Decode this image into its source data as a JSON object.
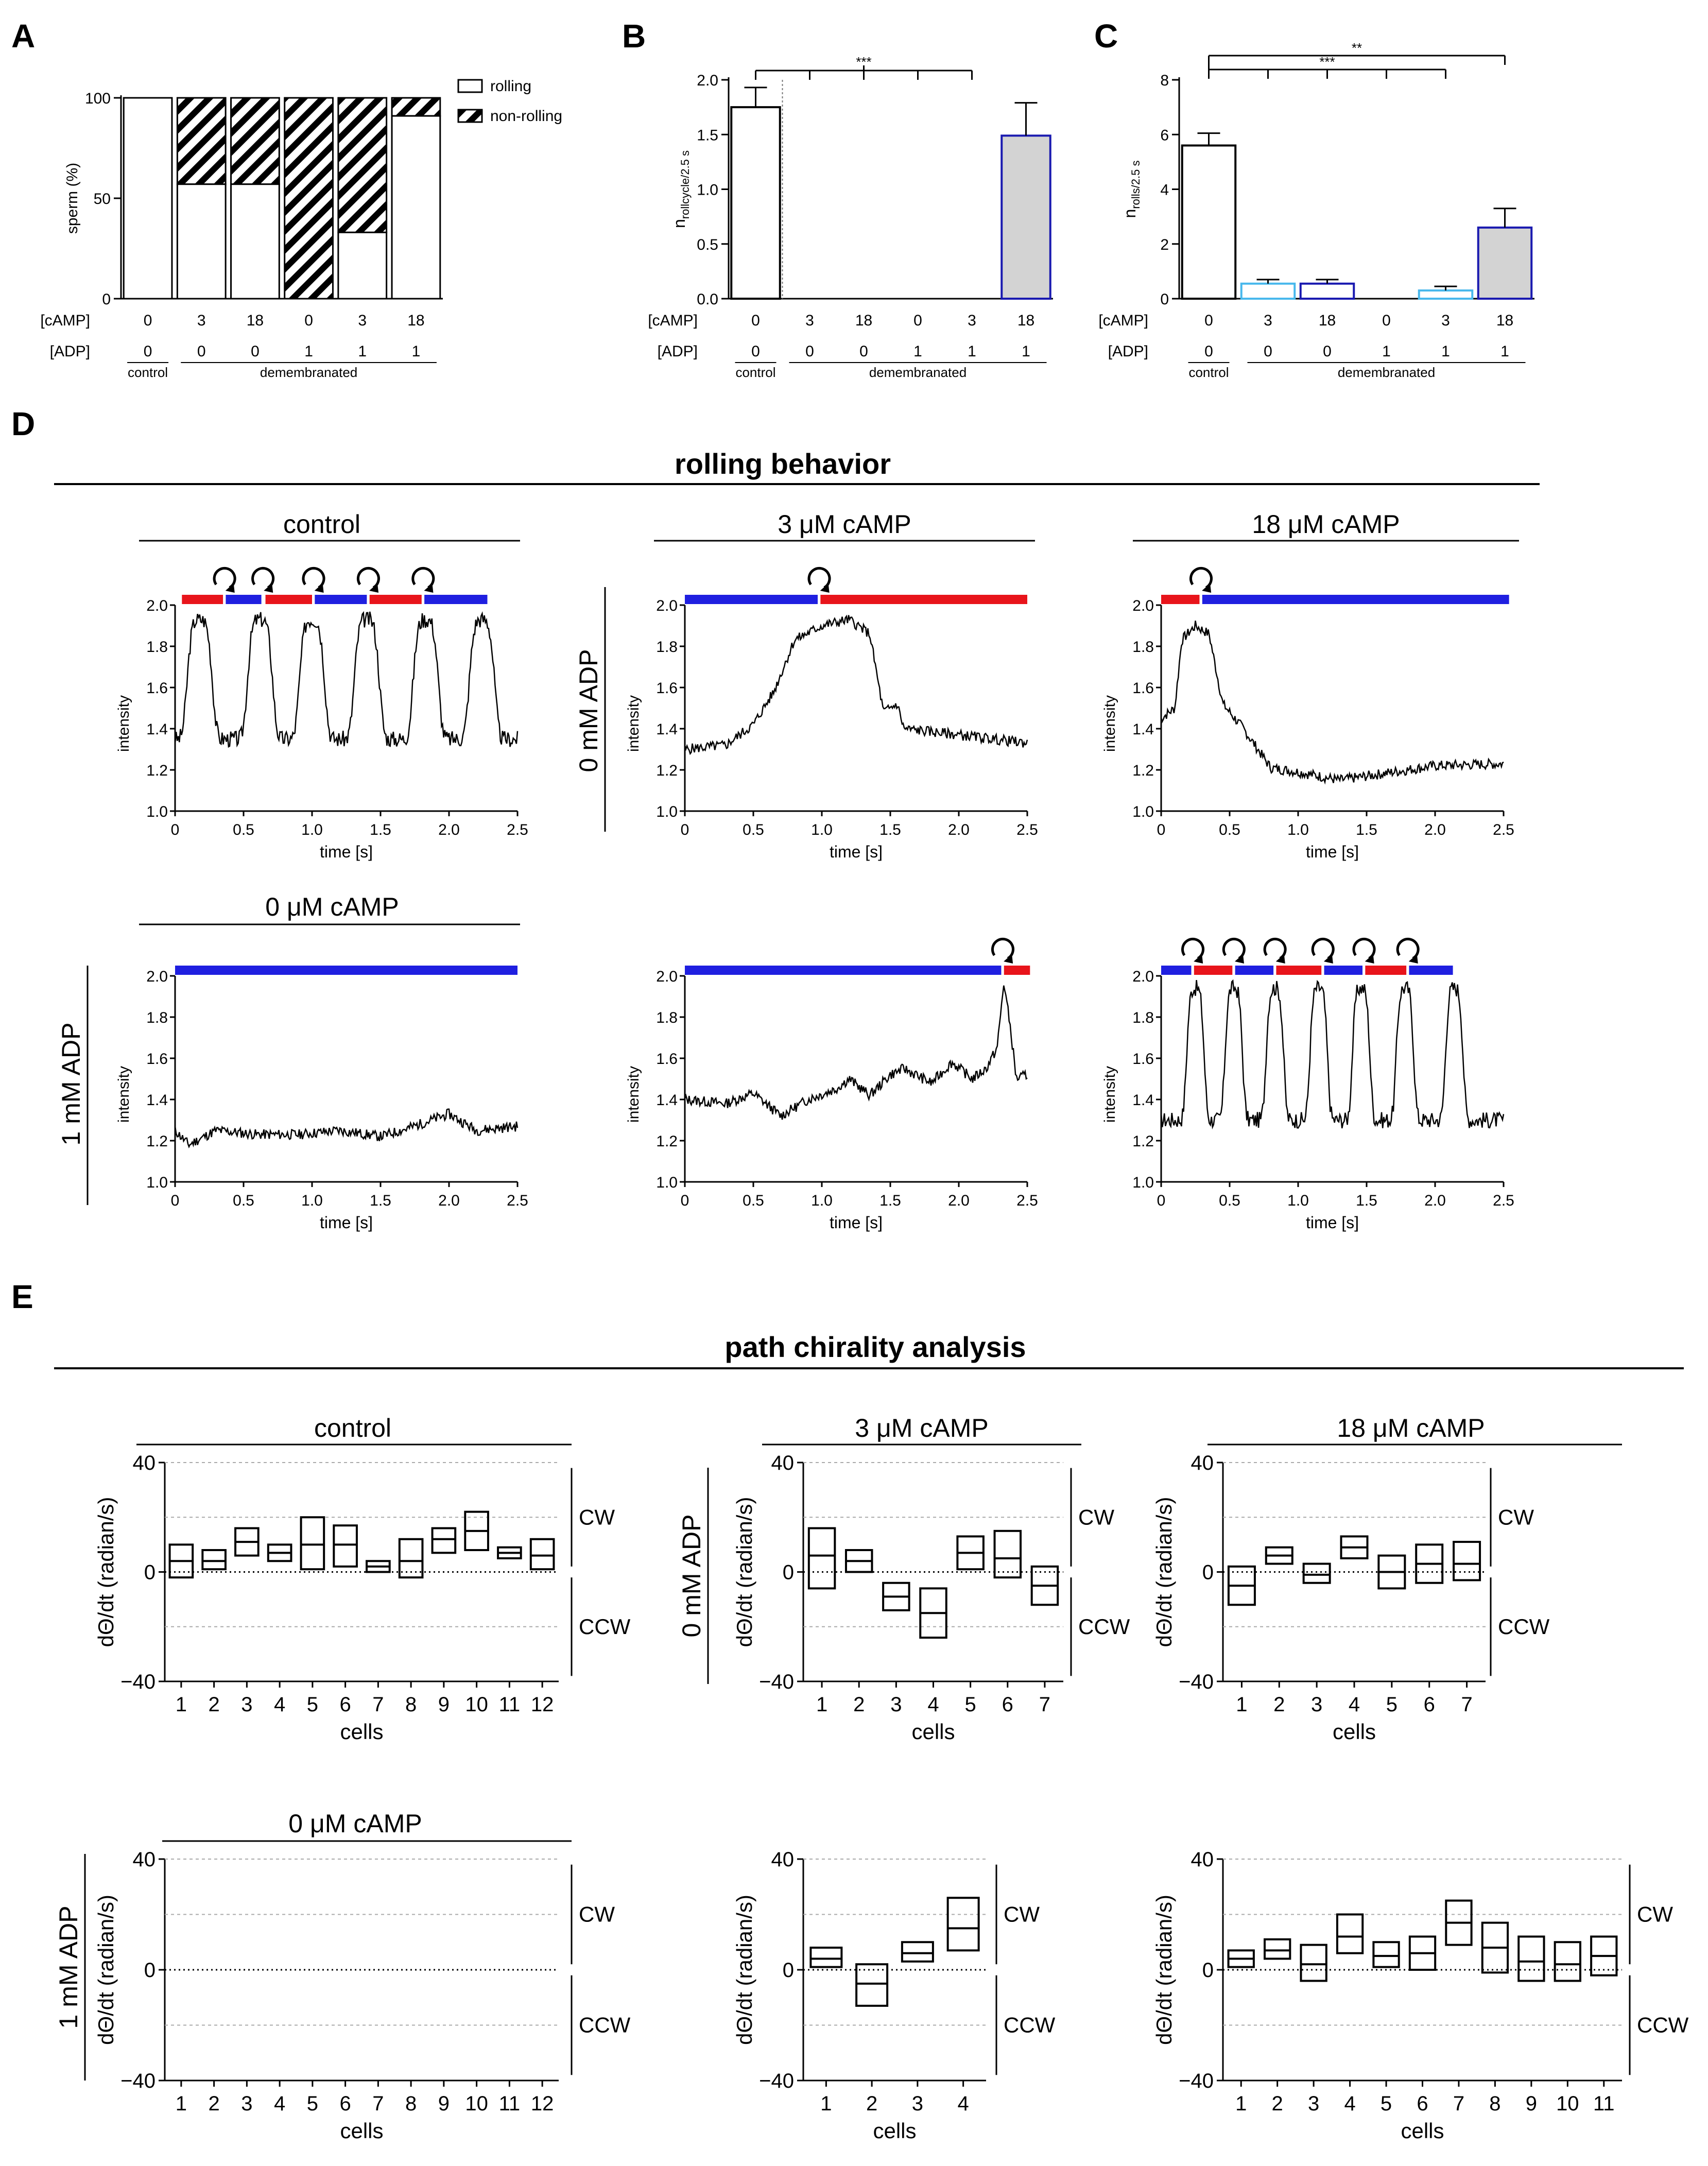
{
  "figure": {
    "panel_letters": [
      "A",
      "B",
      "C",
      "D",
      "E"
    ],
    "section_titles": {
      "rolling_behavior": "rolling behavior",
      "path_chirality": "path chirality analysis"
    },
    "x_labels": {
      "camp": "[cAMP]",
      "adp": "[ADP]",
      "camp_values": [
        "0",
        "3",
        "18",
        "0",
        "3",
        "18"
      ],
      "adp_values": [
        "0",
        "0",
        "0",
        "1",
        "1",
        "1"
      ],
      "control": "control",
      "demembranated": "demembranated"
    },
    "colors": {
      "red": "#e8141b",
      "blue": "#1f1fe0",
      "light_blue": "#48b8ec",
      "dark_blue": "#1a1ab0",
      "gray": "#d3d3d3",
      "grid": "#aaaaaa"
    }
  },
  "chart_data": [
    {
      "id": "A",
      "type": "bar",
      "stacked": true,
      "ylabel": "sperm (%)",
      "ylim": [
        0,
        100
      ],
      "yticks": [
        "0",
        "50",
        "100"
      ],
      "legend": {
        "rolling": "rolling",
        "non_rolling": "non-rolling"
      },
      "series": [
        {
          "name": "rolling",
          "values": [
            100,
            57,
            57,
            0,
            33,
            91
          ]
        },
        {
          "name": "non-rolling",
          "values": [
            0,
            43,
            43,
            100,
            67,
            9
          ]
        }
      ]
    },
    {
      "id": "B",
      "type": "bar",
      "ylabel_main": "n",
      "ylabel_sub": "rollcycle/2.5 s",
      "ylim": [
        0,
        2.0
      ],
      "yticks": [
        "0.0",
        "0.5",
        "1.0",
        "1.5",
        "2.0"
      ],
      "values": [
        1.75,
        0,
        0,
        0,
        0,
        1.49
      ],
      "errors": [
        0.18,
        0,
        0,
        0,
        0,
        0.3
      ],
      "significance": "***"
    },
    {
      "id": "C",
      "type": "bar",
      "ylabel_main": "n",
      "ylabel_sub": "rolls/2.5 s",
      "ylim": [
        0,
        8
      ],
      "yticks": [
        "0",
        "2",
        "4",
        "6",
        "8"
      ],
      "values": [
        5.6,
        0.55,
        0.55,
        0,
        0.3,
        2.6
      ],
      "errors": [
        0.45,
        0.15,
        0.15,
        0,
        0.15,
        0.7
      ],
      "significance_1": "***",
      "significance_2": "**"
    },
    {
      "id": "D",
      "type": "line",
      "row_labels": {
        "adp0": "0 mM ADP",
        "adp1": "1 mM ADP"
      },
      "col_titles": {
        "control": "control",
        "camp3": "3 μM cAMP",
        "camp18": "18 μM cAMP",
        "camp0": "0 μM cAMP"
      },
      "xlabel": "time [s]",
      "ylabel": "intensity",
      "xticks": [
        "0",
        "0.5",
        "1.0",
        "1.5",
        "2.0",
        "2.5"
      ],
      "yticks": [
        "1.0",
        "1.2",
        "1.4",
        "1.6",
        "1.8",
        "2.0"
      ],
      "xlim": [
        0,
        2.5
      ],
      "ylim": [
        1.0,
        2.0
      ],
      "traces": [
        {
          "kind": "periodic",
          "peaks": [
            0.18,
            0.62,
            1.0,
            1.4,
            1.83,
            2.24
          ],
          "base": 1.35,
          "peak": 1.93,
          "width": 0.1,
          "seed": 3,
          "bar": [
            [
              "r",
              0.05,
              0.35
            ],
            [
              "b",
              0.37,
              0.63
            ],
            [
              "r",
              0.66,
              1.0
            ],
            [
              "b",
              1.02,
              1.4
            ],
            [
              "r",
              1.42,
              1.8
            ],
            [
              "b",
              1.82,
              2.28
            ]
          ],
          "loops": [
            0.36,
            0.64,
            1.01,
            1.41,
            1.81
          ]
        },
        {
          "kind": "points",
          "seed": 5,
          "pts": [
            [
              0,
              1.3
            ],
            [
              0.3,
              1.32
            ],
            [
              0.5,
              1.42
            ],
            [
              0.65,
              1.58
            ],
            [
              0.8,
              1.83
            ],
            [
              1.0,
              1.9
            ],
            [
              1.2,
              1.93
            ],
            [
              1.35,
              1.86
            ],
            [
              1.45,
              1.48
            ],
            [
              1.55,
              1.52
            ],
            [
              1.6,
              1.4
            ],
            [
              2.0,
              1.37
            ],
            [
              2.5,
              1.33
            ]
          ],
          "bar": [
            [
              "b",
              0,
              0.97
            ],
            [
              "r",
              0.99,
              2.5
            ]
          ],
          "loops": [
            0.98
          ]
        },
        {
          "kind": "points",
          "seed": 7,
          "pts": [
            [
              0,
              1.45
            ],
            [
              0.1,
              1.5
            ],
            [
              0.15,
              1.83
            ],
            [
              0.25,
              1.9
            ],
            [
              0.35,
              1.86
            ],
            [
              0.45,
              1.52
            ],
            [
              0.6,
              1.4
            ],
            [
              0.8,
              1.21
            ],
            [
              1.0,
              1.19
            ],
            [
              1.3,
              1.15
            ],
            [
              1.6,
              1.18
            ],
            [
              2.0,
              1.22
            ],
            [
              2.5,
              1.23
            ]
          ],
          "bar": [
            [
              "r",
              0,
              0.28
            ],
            [
              "b",
              0.3,
              2.54
            ]
          ],
          "loops": [
            0.29
          ]
        },
        {
          "kind": "points",
          "seed": 11,
          "pts": [
            [
              0,
              1.25
            ],
            [
              0.1,
              1.18
            ],
            [
              0.3,
              1.25
            ],
            [
              0.6,
              1.23
            ],
            [
              0.9,
              1.23
            ],
            [
              1.2,
              1.25
            ],
            [
              1.5,
              1.22
            ],
            [
              1.7,
              1.26
            ],
            [
              2.0,
              1.33
            ],
            [
              2.2,
              1.25
            ],
            [
              2.5,
              1.27
            ]
          ],
          "bar": [
            [
              "b",
              0,
              2.5
            ]
          ],
          "loops": []
        },
        {
          "kind": "points",
          "seed": 13,
          "pts": [
            [
              0,
              1.4
            ],
            [
              0.3,
              1.38
            ],
            [
              0.5,
              1.43
            ],
            [
              0.7,
              1.32
            ],
            [
              0.9,
              1.4
            ],
            [
              1.1,
              1.45
            ],
            [
              1.2,
              1.5
            ],
            [
              1.35,
              1.42
            ],
            [
              1.5,
              1.52
            ],
            [
              1.6,
              1.55
            ],
            [
              1.8,
              1.48
            ],
            [
              1.95,
              1.58
            ],
            [
              2.1,
              1.5
            ],
            [
              2.2,
              1.55
            ],
            [
              2.28,
              1.65
            ],
            [
              2.33,
              1.97
            ],
            [
              2.38,
              1.73
            ],
            [
              2.42,
              1.5
            ],
            [
              2.5,
              1.52
            ]
          ],
          "bar": [
            [
              "b",
              0,
              2.31
            ],
            [
              "r",
              2.33,
              2.52
            ]
          ],
          "loops": [
            2.32
          ]
        },
        {
          "kind": "periodic",
          "peaks": [
            0.25,
            0.53,
            0.83,
            1.15,
            1.46,
            1.78,
            2.14
          ],
          "base": 1.3,
          "peak": 1.94,
          "width": 0.07,
          "seed": 17,
          "bar": [
            [
              "b",
              0,
              0.22
            ],
            [
              "r",
              0.24,
              0.52
            ],
            [
              "b",
              0.54,
              0.82
            ],
            [
              "r",
              0.84,
              1.17
            ],
            [
              "b",
              1.19,
              1.47
            ],
            [
              "r",
              1.49,
              1.79
            ],
            [
              "b",
              1.81,
              2.13
            ]
          ],
          "loops": [
            0.23,
            0.53,
            0.83,
            1.18,
            1.48,
            1.8
          ]
        }
      ]
    },
    {
      "id": "E",
      "type": "box",
      "ylabel": "dΘ/dt (radian/s)",
      "xlabel": "cells",
      "ylim": [
        -40,
        40
      ],
      "yticks": [
        "40",
        "0",
        "−40"
      ],
      "cw_label": "CW",
      "ccw_label": "CCW",
      "row_labels": {
        "adp0": "0 mM ADP",
        "adp1": "1 mM ADP"
      },
      "col_titles": {
        "control": "control",
        "camp3": "3 μM cAMP",
        "camp18": "18 μM cAMP",
        "camp0": "0 μM cAMP"
      },
      "plots": [
        {
          "cells": [
            "1",
            "2",
            "3",
            "4",
            "5",
            "6",
            "7",
            "8",
            "9",
            "10",
            "11",
            "12"
          ],
          "boxes": [
            [
              -2,
              10,
              4
            ],
            [
              1,
              8,
              4
            ],
            [
              6,
              16,
              11
            ],
            [
              4,
              10,
              7
            ],
            [
              1,
              20,
              10
            ],
            [
              2,
              17,
              10
            ],
            [
              0,
              4,
              2
            ],
            [
              -2,
              12,
              4
            ],
            [
              7,
              16,
              12
            ],
            [
              8,
              22,
              15
            ],
            [
              5,
              9,
              7
            ],
            [
              1,
              12,
              6
            ]
          ]
        },
        {
          "cells": [
            "1",
            "2",
            "3",
            "4",
            "5",
            "6",
            "7"
          ],
          "boxes": [
            [
              -6,
              16,
              6
            ],
            [
              0,
              8,
              4
            ],
            [
              -14,
              -4,
              -9
            ],
            [
              -24,
              -6,
              -15
            ],
            [
              1,
              13,
              7
            ],
            [
              -2,
              15,
              5
            ],
            [
              -12,
              2,
              -5
            ]
          ]
        },
        {
          "cells": [
            "1",
            "2",
            "3",
            "4",
            "5",
            "6",
            "7"
          ],
          "boxes": [
            [
              -12,
              2,
              -5
            ],
            [
              3,
              9,
              6
            ],
            [
              -4,
              3,
              -1
            ],
            [
              5,
              13,
              9
            ],
            [
              -6,
              6,
              0
            ],
            [
              -4,
              10,
              3
            ],
            [
              -3,
              11,
              3
            ]
          ]
        },
        {
          "cells": [
            "1",
            "2",
            "3",
            "4",
            "5",
            "6",
            "7",
            "8",
            "9",
            "10",
            "11",
            "12"
          ],
          "boxes": []
        },
        {
          "cells": [
            "1",
            "2",
            "3",
            "4"
          ],
          "boxes": [
            [
              1,
              8,
              4
            ],
            [
              -13,
              2,
              -5
            ],
            [
              3,
              10,
              6
            ],
            [
              7,
              26,
              15
            ]
          ]
        },
        {
          "cells": [
            "1",
            "2",
            "3",
            "4",
            "5",
            "6",
            "7",
            "8",
            "9",
            "10",
            "11"
          ],
          "boxes": [
            [
              1,
              7,
              4
            ],
            [
              4,
              11,
              7
            ],
            [
              -4,
              9,
              2
            ],
            [
              6,
              20,
              12
            ],
            [
              1,
              10,
              5
            ],
            [
              0,
              12,
              6
            ],
            [
              9,
              25,
              17
            ],
            [
              -1,
              17,
              8
            ],
            [
              -4,
              12,
              3
            ],
            [
              -4,
              10,
              2
            ],
            [
              -2,
              12,
              5
            ]
          ]
        }
      ]
    }
  ]
}
